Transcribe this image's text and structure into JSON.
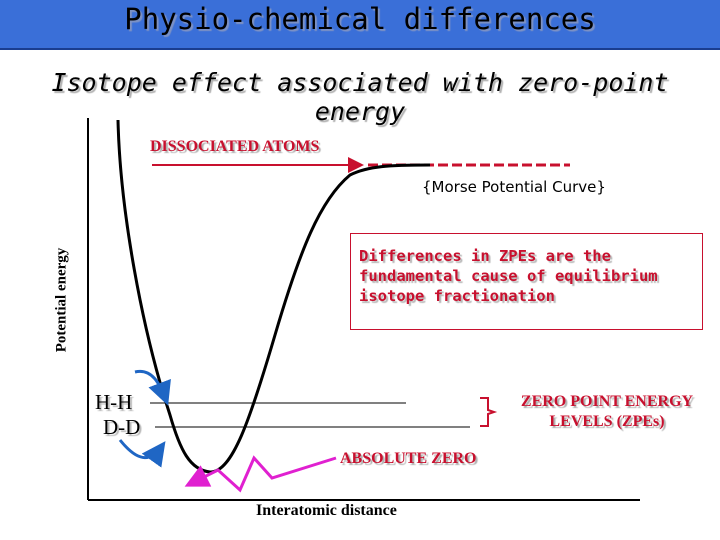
{
  "header": {
    "title": "Physio-chemical differences",
    "subtitle": "Isotope effect associated with zero-point energy"
  },
  "diagram": {
    "y_axis_label": "Potential energy",
    "x_axis_label": "Interatomic distance",
    "dissociated_label": "DISSOCIATED ATOMS",
    "curve_label": "{Morse Potential Curve}",
    "note": "Differences in ZPEs are the fundamental cause of equilibrium isotope fractionation",
    "level_hh": "H-H",
    "level_dd": "D-D",
    "zpe_label": "ZERO POINT ENERGY LEVELS (ZPEs)",
    "absolute_zero_label": "ABSOLUTE ZERO"
  },
  "colors": {
    "title_bar": "#3a6fd8",
    "accent_red": "#c8102e",
    "magenta": "#e020d0",
    "arrow_blue": "#1f66c4"
  }
}
